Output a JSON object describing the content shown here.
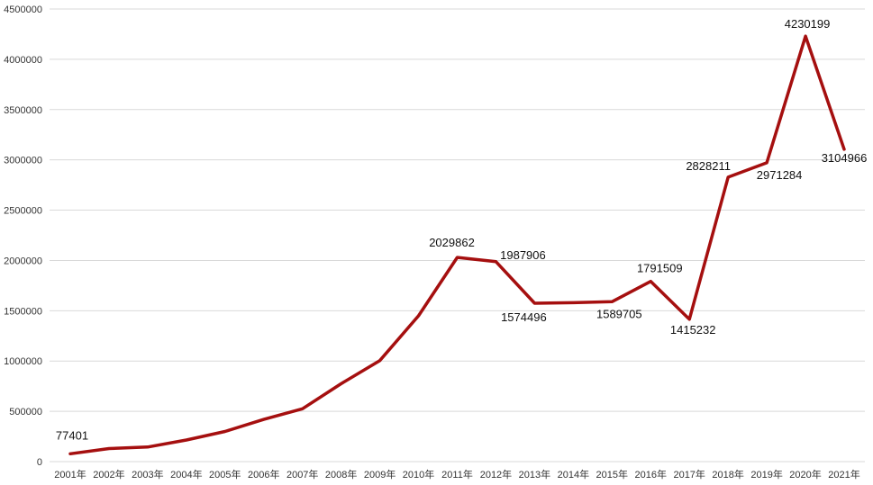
{
  "chart_data": {
    "type": "line",
    "categories": [
      "2001年",
      "2002年",
      "2003年",
      "2004年",
      "2005年",
      "2006年",
      "2007年",
      "2008年",
      "2009年",
      "2010年",
      "2011年",
      "2012年",
      "2013年",
      "2014年",
      "2015年",
      "2016年",
      "2017年",
      "2018年",
      "2019年",
      "2020年",
      "2021年"
    ],
    "series": [
      {
        "values": [
          77401,
          130000,
          145000,
          215000,
          300000,
          420000,
          525000,
          775000,
          1005000,
          1450000,
          2029862,
          1987906,
          1574496,
          1580000,
          1589705,
          1791509,
          1415232,
          2828211,
          2971284,
          4230199,
          3104966
        ],
        "color": "#a50f0f"
      }
    ],
    "data_labels": [
      {
        "index": 0,
        "text": "77401"
      },
      {
        "index": 10,
        "text": "2029862"
      },
      {
        "index": 11,
        "text": "1987906"
      },
      {
        "index": 12,
        "text": "1574496"
      },
      {
        "index": 14,
        "text": "1589705"
      },
      {
        "index": 15,
        "text": "1791509"
      },
      {
        "index": 16,
        "text": "1415232"
      },
      {
        "index": 17,
        "text": "2828211"
      },
      {
        "index": 18,
        "text": "2971284"
      },
      {
        "index": 19,
        "text": "4230199"
      },
      {
        "index": 20,
        "text": "3104966"
      }
    ],
    "y_ticks": [
      "0",
      "500000",
      "1000000",
      "1500000",
      "2000000",
      "2500000",
      "3000000",
      "3500000",
      "4000000",
      "4500000"
    ],
    "ylim": [
      0,
      4500000
    ],
    "grid": true,
    "legend": "none",
    "gridline_color": "#d9d9d9"
  }
}
